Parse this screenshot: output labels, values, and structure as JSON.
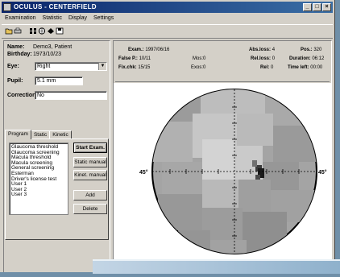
{
  "window": {
    "title": "OCULUS  -  CENTERFIELD",
    "buttons": {
      "minimize": "_",
      "maximize": "□",
      "close": "×"
    }
  },
  "menu": [
    "Examination",
    "Statistic",
    "Display",
    "Settings"
  ],
  "toolbar": {
    "icons": [
      "open-icon",
      "print-icon",
      "grid-icon",
      "field-icon",
      "eye-icon",
      "save-icon"
    ]
  },
  "patient": {
    "name_label": "Name:",
    "name_value": "Demo3, Patient",
    "birthday_label": "Birthday:",
    "birthday_value": "1973/10/23",
    "eye_label": "Eye:",
    "eye_value": "Right",
    "pupil_label": "Pupil:",
    "pupil_value": "5.1 mm",
    "correction_label": "Correction:",
    "correction_value": "No"
  },
  "tabs": [
    "Program",
    "Static",
    "Kinetic"
  ],
  "programs": [
    "Glaucoma threshold",
    "Glaucoma screening",
    "Macula threshold",
    "Macula screening",
    "General screening",
    "Esterman",
    "Driver's license test",
    "User 1",
    "User 2",
    "User 3"
  ],
  "buttons": {
    "start": "Start Exam.",
    "static": "Static manual",
    "kinetic": "Kinet. manual",
    "add": "Add",
    "delete": "Delete"
  },
  "exam": {
    "exam_label": "Exam.:",
    "exam_value": "1997/06/16",
    "false_p_label": "False P.:",
    "false_p_value": "10/11",
    "fixchk_label": "Fix.chk:",
    "fixchk_value": "15/15",
    "mos_label": "Mos:",
    "mos_value": "0",
    "exos_label": "Exos:",
    "exos_value": "0",
    "absloss_label": "Abs.loss:",
    "absloss_value": "4",
    "relloss_label": "Rel.loss:",
    "relloss_value": "0",
    "rel_label": "Rel:",
    "rel_value": "0",
    "pos_label": "Pos.:",
    "pos_value": "320",
    "duration_label": "Duration:",
    "duration_value": "06:12",
    "timeleft_label": "Time left:",
    "timeleft_value": "00:00"
  },
  "plot": {
    "left_label": "45°",
    "right_label": "45°"
  }
}
